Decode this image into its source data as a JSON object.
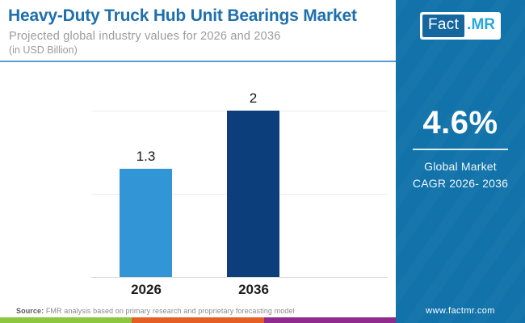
{
  "header": {
    "title": "Heavy-Duty Truck Hub Unit Bearings Market",
    "subtitle": "Projected global industry values for 2026 and 2036",
    "unit_note": "(in USD Billion)"
  },
  "chart_data": {
    "type": "bar",
    "categories": [
      "2026",
      "2036"
    ],
    "values": [
      1.3,
      2
    ],
    "value_labels": [
      "1.3",
      "2"
    ],
    "colors": [
      "#3295d5",
      "#0d3e7c"
    ],
    "title": "Heavy-Duty Truck Hub Unit Bearings Market",
    "xlabel": "",
    "ylabel": "",
    "ylim": [
      0,
      2
    ],
    "grid": true,
    "legend": false
  },
  "sidebar": {
    "logo_fact": "Fact",
    "logo_mr": ".MR",
    "cagr_value": "4.6%",
    "cagr_label_line1": "Global Market",
    "cagr_label_line2": "CAGR 2026- 2036",
    "website": "www.factmr.com",
    "background": "#1173aa"
  },
  "footer": {
    "source_label": "Source:",
    "source_text": " FMR analysis based on primary research and proprietary forecasting model",
    "strip_colors": [
      "#8dc63f",
      "#e55f25",
      "#8f2b8c"
    ]
  },
  "colors": {
    "title_blue": "#1e6fad",
    "subtitle_gray": "#9b9b9b",
    "header_divider": "#5b9bd0",
    "bar_2026": "#3295d5",
    "bar_2036": "#0d3e7c",
    "sidebar_blue": "#1173aa",
    "logo_fact_bg": "#15669f",
    "logo_mr_blue": "#29a8e0"
  }
}
